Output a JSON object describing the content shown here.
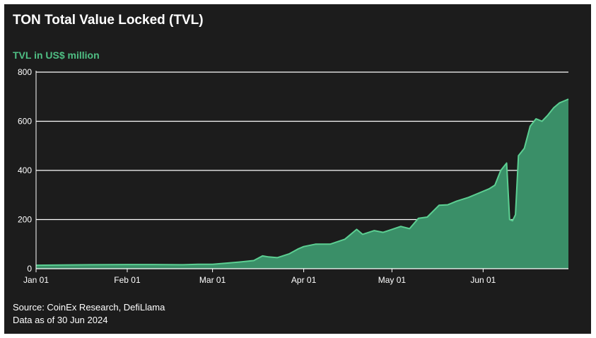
{
  "title": "TON Total Value Locked (TVL)",
  "footer": {
    "source": "Source: CoinEx Research, DefiLlama",
    "date_note": "Data as of 30 Jun 2024"
  },
  "colors": {
    "background": "#1c1c1c",
    "area_fill": "#3a8f68",
    "line": "#5ccf92",
    "accent_text": "#4fbf84",
    "grid": "#ffffff"
  },
  "chart_data": {
    "type": "area",
    "title": "TON Total Value Locked (TVL)",
    "ylabel": "TVL in US$ million",
    "xlabel": "",
    "ylim": [
      0,
      800
    ],
    "xlim": [
      "2024-01-01",
      "2024-06-30"
    ],
    "yticks": [
      0,
      200,
      400,
      600,
      800
    ],
    "xticks": [
      {
        "date": "2024-01-01",
        "label": "Jan 01"
      },
      {
        "date": "2024-02-01",
        "label": "Feb 01"
      },
      {
        "date": "2024-03-01",
        "label": "Mar 01"
      },
      {
        "date": "2024-04-01",
        "label": "Apr 01"
      },
      {
        "date": "2024-05-01",
        "label": "May 01"
      },
      {
        "date": "2024-06-01",
        "label": "Jun 01"
      }
    ],
    "grid": "horizontal",
    "series": [
      {
        "name": "",
        "points": [
          [
            "2024-01-01",
            14
          ],
          [
            "2024-01-10",
            15
          ],
          [
            "2024-01-20",
            16
          ],
          [
            "2024-02-01",
            17
          ],
          [
            "2024-02-10",
            17
          ],
          [
            "2024-02-20",
            16
          ],
          [
            "2024-02-25",
            18
          ],
          [
            "2024-03-01",
            18
          ],
          [
            "2024-03-05",
            22
          ],
          [
            "2024-03-10",
            27
          ],
          [
            "2024-03-15",
            33
          ],
          [
            "2024-03-18",
            52
          ],
          [
            "2024-03-20",
            48
          ],
          [
            "2024-03-23",
            45
          ],
          [
            "2024-03-27",
            60
          ],
          [
            "2024-03-30",
            80
          ],
          [
            "2024-04-01",
            90
          ],
          [
            "2024-04-05",
            100
          ],
          [
            "2024-04-10",
            100
          ],
          [
            "2024-04-15",
            120
          ],
          [
            "2024-04-19",
            160
          ],
          [
            "2024-04-21",
            140
          ],
          [
            "2024-04-25",
            155
          ],
          [
            "2024-04-28",
            148
          ],
          [
            "2024-05-01",
            160
          ],
          [
            "2024-05-04",
            172
          ],
          [
            "2024-05-07",
            163
          ],
          [
            "2024-05-10",
            205
          ],
          [
            "2024-05-13",
            210
          ],
          [
            "2024-05-17",
            258
          ],
          [
            "2024-05-20",
            260
          ],
          [
            "2024-05-23",
            275
          ],
          [
            "2024-05-27",
            290
          ],
          [
            "2024-05-30",
            305
          ],
          [
            "2024-06-03",
            325
          ],
          [
            "2024-06-05",
            340
          ],
          [
            "2024-06-07",
            400
          ],
          [
            "2024-06-09",
            430
          ],
          [
            "2024-06-10",
            200
          ],
          [
            "2024-06-11",
            195
          ],
          [
            "2024-06-12",
            220
          ],
          [
            "2024-06-13",
            460
          ],
          [
            "2024-06-15",
            490
          ],
          [
            "2024-06-17",
            580
          ],
          [
            "2024-06-19",
            610
          ],
          [
            "2024-06-21",
            600
          ],
          [
            "2024-06-23",
            625
          ],
          [
            "2024-06-25",
            655
          ],
          [
            "2024-06-27",
            675
          ],
          [
            "2024-06-29",
            685
          ],
          [
            "2024-06-30",
            690
          ]
        ]
      }
    ]
  }
}
